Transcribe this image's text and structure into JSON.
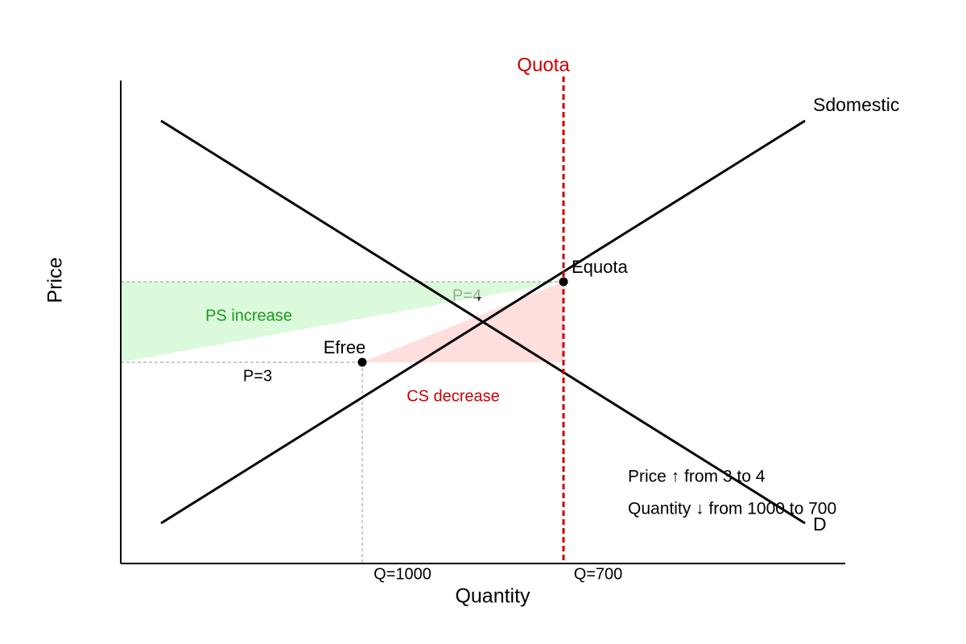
{
  "axes": {
    "x_label": "Quantity",
    "y_label": "Price"
  },
  "curves": {
    "supply": "Sdomestic",
    "demand": "D"
  },
  "quota": {
    "label": "Quota"
  },
  "points": [
    {
      "label": "Efree"
    },
    {
      "label": "Equota"
    }
  ],
  "guides": {
    "p_free": "P=3",
    "p_quota": "P=4",
    "q_free": "Q=1000",
    "q_quota": "Q=700"
  },
  "areas": {
    "ps": "PS increase",
    "cs": "CS decrease"
  },
  "notes": [
    "Price ↑ from 3 to 4",
    "Quantity ↓ from 1000 to 700"
  ]
}
